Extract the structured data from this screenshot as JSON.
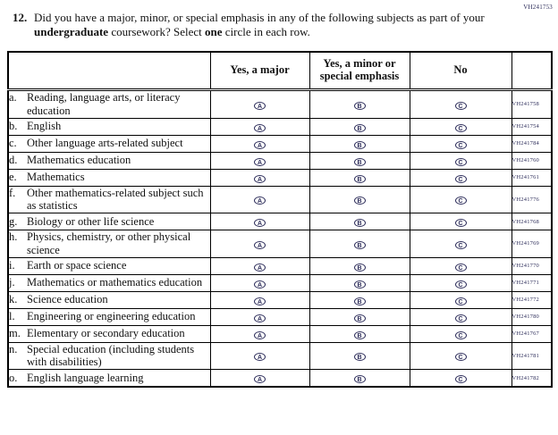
{
  "page": {
    "form_code": "VH241753"
  },
  "question": {
    "number": "12.",
    "segments": [
      {
        "text": "Did you have a major, minor, or special emphasis in any of the following subjects as part of your ",
        "bold": false
      },
      {
        "text": "undergraduate",
        "bold": true
      },
      {
        "text": " coursework? Select ",
        "bold": false
      },
      {
        "text": "one",
        "bold": true
      },
      {
        "text": " circle in each row.",
        "bold": false
      }
    ]
  },
  "table": {
    "headers": {
      "label": "",
      "option1": "Yes, a major",
      "option2": "Yes, a minor or special emphasis",
      "option3": "No",
      "code": ""
    },
    "options": [
      {
        "name": "yes-major",
        "bubble_letter": "A"
      },
      {
        "name": "yes-minor-special-emphasis",
        "bubble_letter": "B"
      },
      {
        "name": "no",
        "bubble_letter": "C"
      }
    ],
    "rows": [
      {
        "letter": "a.",
        "label": "Reading, language arts, or literacy education",
        "code": "VH241758"
      },
      {
        "letter": "b.",
        "label": "English",
        "code": "VH241754"
      },
      {
        "letter": "c.",
        "label": "Other language arts-related subject",
        "code": "VH241784"
      },
      {
        "letter": "d.",
        "label": "Mathematics education",
        "code": "VH241760"
      },
      {
        "letter": "e.",
        "label": "Mathematics",
        "code": "VH241761"
      },
      {
        "letter": "f.",
        "label": "Other mathematics-related subject such as statistics",
        "code": "VH241776"
      },
      {
        "letter": "g.",
        "label": "Biology or other life science",
        "code": "VH241768"
      },
      {
        "letter": "h.",
        "label": "Physics, chemistry, or other physical science",
        "code": "VH241769"
      },
      {
        "letter": "i.",
        "label": "Earth or space science",
        "code": "VH241770"
      },
      {
        "letter": "j.",
        "label": "Mathematics or mathematics education",
        "code": "VH241771"
      },
      {
        "letter": "k.",
        "label": "Science education",
        "code": "VH241772"
      },
      {
        "letter": "l.",
        "label": "Engineering or engineering education",
        "code": "VH241780"
      },
      {
        "letter": "m.",
        "label": "Elementary or secondary education",
        "code": "VH241767"
      },
      {
        "letter": "n.",
        "label": "Special education (including students with disabilities)",
        "code": "VH241781"
      },
      {
        "letter": "o.",
        "label": "English language learning",
        "code": "VH241782"
      }
    ],
    "colors": {
      "bubble": "#2d2d5a",
      "text": "#111111",
      "border": "#000000"
    }
  }
}
